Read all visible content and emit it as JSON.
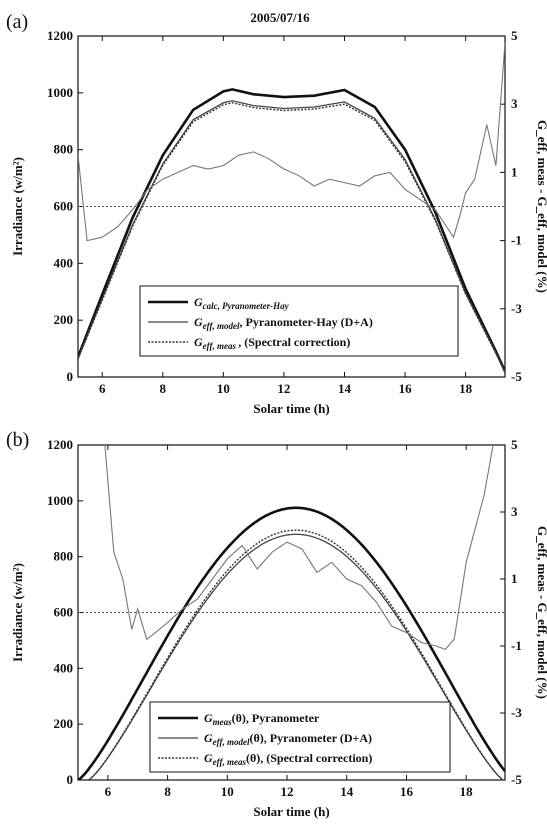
{
  "figure": {
    "date_title": "2005/07/16"
  },
  "chart_data": [
    {
      "panel": "(a)",
      "type": "line",
      "title": "2005/07/16",
      "xlabel": "Solar time (h)",
      "ylabel": "Irradiance (w/m²)",
      "y2label": "G_eff, meas - G_eff, model (%)",
      "xlim": [
        5.2,
        19.3
      ],
      "ylim": [
        0,
        1200
      ],
      "y2lim": [
        -5,
        5
      ],
      "xticks": [
        6,
        8,
        10,
        12,
        14,
        16,
        18
      ],
      "yticks": [
        0,
        200,
        400,
        600,
        800,
        1000,
        1200
      ],
      "y2ticks": [
        -5,
        -3,
        -1,
        1,
        3,
        5
      ],
      "grid": false,
      "legend_position": "bottom-center",
      "reference_line": {
        "axis": "y2",
        "value": 0,
        "style": "dotted"
      },
      "series": [
        {
          "name": "G_calc, Pyranometer-Hay",
          "style": "thick-solid",
          "axis": "y",
          "peak": 1015,
          "x": [
            5.2,
            6,
            7,
            8,
            9,
            10,
            10.3,
            11,
            12,
            13,
            14,
            15,
            16,
            17,
            18,
            19,
            19.3
          ],
          "values": [
            70,
            290,
            560,
            780,
            940,
            1005,
            1012,
            995,
            985,
            990,
            1010,
            950,
            800,
            580,
            310,
            90,
            20
          ]
        },
        {
          "name": "G_eff, model, Pyranometer-Hay (D+A)",
          "style": "thin-solid",
          "axis": "y",
          "peak": 975,
          "x": [
            5.2,
            6,
            7,
            8,
            9,
            10,
            10.3,
            11,
            12,
            13,
            14,
            15,
            16,
            17,
            18,
            19,
            19.3
          ],
          "values": [
            65,
            275,
            535,
            750,
            905,
            965,
            972,
            955,
            945,
            950,
            968,
            910,
            765,
            555,
            295,
            85,
            18
          ]
        },
        {
          "name": "G_eff, meas (Spectral correction)",
          "style": "dotted",
          "axis": "y",
          "peak": 965,
          "x": [
            5.2,
            6,
            7,
            8,
            9,
            10,
            10.3,
            11,
            12,
            13,
            14,
            15,
            16,
            17,
            18,
            19,
            19.3
          ],
          "values": [
            63,
            270,
            530,
            745,
            898,
            958,
            965,
            948,
            938,
            943,
            960,
            903,
            758,
            550,
            292,
            83,
            17
          ]
        },
        {
          "name": "",
          "style": "thin-gray",
          "axis": "y2",
          "x": [
            5.2,
            5.5,
            6,
            6.5,
            7,
            7.5,
            8,
            8.5,
            9,
            9.5,
            10,
            10.5,
            11,
            11.5,
            12,
            12.5,
            13,
            13.5,
            14,
            14.5,
            15,
            15.5,
            16,
            16.5,
            17,
            17.3,
            17.6,
            17.8,
            18,
            18.3,
            18.7,
            19,
            19.3
          ],
          "values": [
            1.5,
            -1.0,
            -0.9,
            -0.6,
            -0.1,
            0.5,
            0.8,
            1.0,
            1.2,
            1.1,
            1.2,
            1.5,
            1.6,
            1.4,
            1.1,
            0.9,
            0.6,
            0.8,
            0.7,
            0.6,
            0.9,
            1.0,
            0.5,
            0.2,
            -0.1,
            -0.5,
            -0.9,
            -0.3,
            0.4,
            0.8,
            2.4,
            1.2,
            4.8
          ]
        }
      ]
    },
    {
      "panel": "(b)",
      "type": "line",
      "title": "",
      "xlabel": "Solar time (h)",
      "ylabel": "Irradiance (w/m²)",
      "y2label": "G_eff, meas - G_eff, model (%)",
      "xlim": [
        5,
        19.3
      ],
      "ylim": [
        0,
        1200
      ],
      "y2lim": [
        -5,
        5
      ],
      "xticks": [
        6,
        8,
        10,
        12,
        14,
        16,
        18
      ],
      "yticks": [
        0,
        200,
        400,
        600,
        800,
        1000,
        1200
      ],
      "y2ticks": [
        -5,
        -3,
        -1,
        1,
        3,
        5
      ],
      "grid": false,
      "legend_position": "bottom-center",
      "reference_line": {
        "axis": "y2",
        "value": 0,
        "style": "dotted"
      },
      "series": [
        {
          "name": "G_meas(θ), Pyranometer",
          "style": "thick-solid",
          "axis": "y",
          "peak": 975,
          "center": 12.3,
          "half_width": 7.3
        },
        {
          "name": "G_eff, model(θ), Pyranometer (D+A)",
          "style": "thin-solid",
          "axis": "y",
          "peak": 880,
          "center": 12.3,
          "half_width": 6.95
        },
        {
          "name": "G_eff, meas(θ) (Spectral correction)",
          "style": "dotted",
          "axis": "y",
          "peak": 895,
          "center": 12.3,
          "half_width": 6.95
        },
        {
          "name": "",
          "style": "thin-gray",
          "axis": "y2",
          "x": [
            5.9,
            6.2,
            6.5,
            6.8,
            7,
            7.3,
            7.6,
            8,
            8.5,
            9,
            9.5,
            10,
            10.5,
            11,
            11.5,
            12,
            12.5,
            13,
            13.5,
            14,
            14.5,
            15,
            15.5,
            16,
            16.5,
            17,
            17.3,
            17.6,
            18,
            18.3,
            18.6,
            18.9
          ],
          "values": [
            5.0,
            1.8,
            1.0,
            -0.5,
            0.1,
            -0.8,
            -0.6,
            -0.3,
            0.1,
            0.4,
            1.0,
            1.6,
            2.0,
            1.3,
            1.8,
            2.1,
            1.9,
            1.2,
            1.5,
            1.0,
            0.8,
            0.3,
            -0.4,
            -0.6,
            -0.9,
            -1.0,
            -1.1,
            -0.8,
            1.5,
            2.5,
            3.5,
            5.0
          ]
        }
      ]
    }
  ]
}
